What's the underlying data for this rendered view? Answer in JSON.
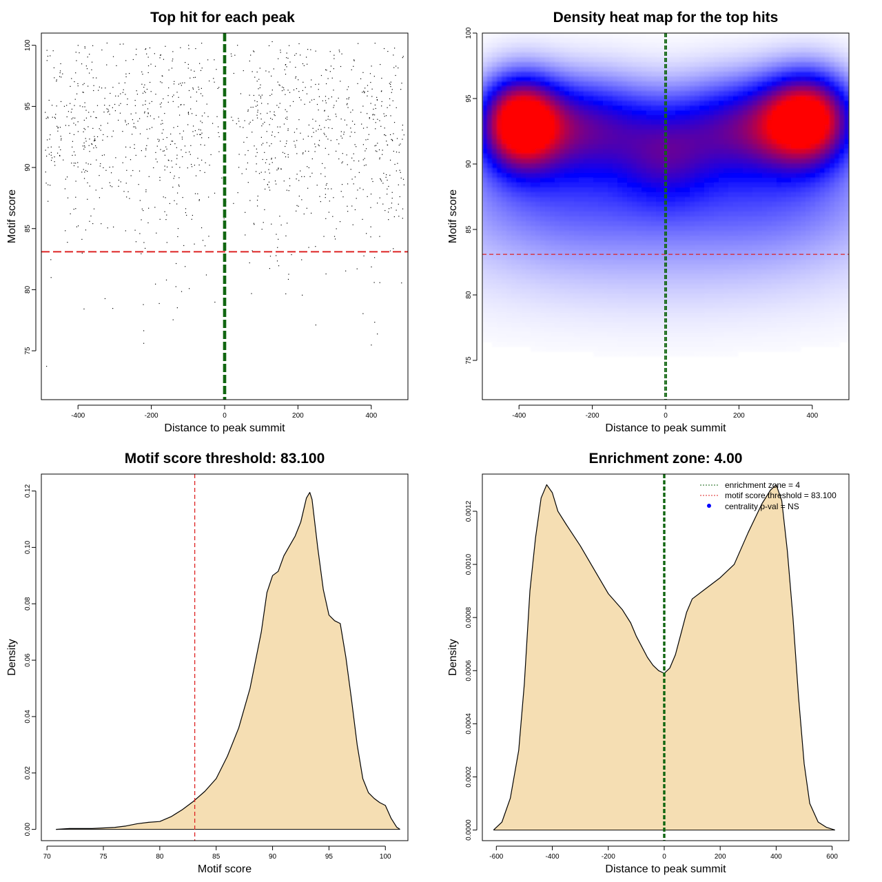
{
  "chart_data": [
    {
      "id": "scatter",
      "type": "scatter",
      "title": "Top hit for each peak",
      "xlabel": "Distance to peak summit",
      "ylabel": "Motif score",
      "xlim": [
        -500,
        500
      ],
      "ylim": [
        71,
        101
      ],
      "xticks": [
        -400,
        -200,
        0,
        200,
        400
      ],
      "yticks": [
        75,
        80,
        85,
        90,
        95,
        100
      ],
      "xtick_labels": [
        "-400",
        "-200",
        "0",
        "200",
        "400"
      ],
      "ytick_labels": [
        "75",
        "80",
        "85",
        "90",
        "95",
        "100"
      ],
      "threshold": 83.1,
      "enrichment_zone": [
        -2,
        2
      ],
      "threshold_color": "#dd2222",
      "zone_color": "#116611",
      "point_color": "#000000",
      "density_rows": [
        {
          "score": 99.8,
          "weight": 0.35
        },
        {
          "score": 99.0,
          "weight": 0.45
        },
        {
          "score": 98.0,
          "weight": 0.6
        },
        {
          "score": 97.0,
          "weight": 0.75
        },
        {
          "score": 96.0,
          "weight": 0.85
        },
        {
          "score": 95.0,
          "weight": 0.95
        },
        {
          "score": 94.0,
          "weight": 1.0
        },
        {
          "score": 93.0,
          "weight": 1.0
        },
        {
          "score": 92.0,
          "weight": 0.95
        },
        {
          "score": 91.0,
          "weight": 0.85
        },
        {
          "score": 90.0,
          "weight": 0.75
        },
        {
          "score": 89.0,
          "weight": 0.6
        },
        {
          "score": 88.0,
          "weight": 0.48
        },
        {
          "score": 87.0,
          "weight": 0.38
        },
        {
          "score": 86.0,
          "weight": 0.3
        },
        {
          "score": 85.0,
          "weight": 0.24
        },
        {
          "score": 84.0,
          "weight": 0.18
        },
        {
          "score": 83.0,
          "weight": 0.14
        },
        {
          "score": 82.0,
          "weight": 0.1
        },
        {
          "score": 81.0,
          "weight": 0.08
        },
        {
          "score": 80.0,
          "weight": 0.06
        },
        {
          "score": 79.0,
          "weight": 0.045
        },
        {
          "score": 78.0,
          "weight": 0.035
        },
        {
          "score": 77.0,
          "weight": 0.025
        },
        {
          "score": 76.0,
          "weight": 0.018
        },
        {
          "score": 75.0,
          "weight": 0.012
        },
        {
          "score": 74.0,
          "weight": 0.006
        },
        {
          "score": 72.5,
          "weight": 0.004
        }
      ]
    },
    {
      "id": "heatmap",
      "type": "heatmap",
      "title": "Density heat map for the top hits",
      "xlabel": "Distance to peak summit",
      "ylabel": "Motif score",
      "xlim": [
        -500,
        500
      ],
      "ylim": [
        72,
        100
      ],
      "xticks": [
        -400,
        -200,
        0,
        200,
        400
      ],
      "yticks": [
        75,
        80,
        85,
        90,
        95,
        100
      ],
      "xtick_labels": [
        "-400",
        "-200",
        "0",
        "200",
        "400"
      ],
      "ytick_labels": [
        "75",
        "80",
        "85",
        "90",
        "95",
        "100"
      ],
      "threshold": 83.1,
      "enrichment_zone": [
        -2,
        2
      ],
      "threshold_color": "#dd2222",
      "zone_color": "#116611",
      "blobs": [
        {
          "x": -400,
          "y": 93.2,
          "sx": 75,
          "sy": 2.4,
          "level": 1.0
        },
        {
          "x": 390,
          "y": 93.5,
          "sx": 85,
          "sy": 2.4,
          "level": 0.95
        },
        {
          "x": -220,
          "y": 93,
          "sx": 140,
          "sy": 2.6,
          "level": 0.55
        },
        {
          "x": 210,
          "y": 93,
          "sx": 140,
          "sy": 2.6,
          "level": 0.55
        },
        {
          "x": 0,
          "y": 90.5,
          "sx": 90,
          "sy": 2.5,
          "level": 0.28
        },
        {
          "x": -300,
          "y": 88,
          "sx": 230,
          "sy": 3.5,
          "level": 0.22
        },
        {
          "x": 300,
          "y": 88,
          "sx": 230,
          "sy": 3.5,
          "level": 0.22
        },
        {
          "x": 0,
          "y": 86,
          "sx": 400,
          "sy": 3.5,
          "level": 0.12
        },
        {
          "x": 0,
          "y": 81,
          "sx": 450,
          "sy": 3,
          "level": 0.05
        }
      ]
    },
    {
      "id": "score_density",
      "type": "area",
      "title": "Motif score threshold: 83.100",
      "xlabel": "Motif score",
      "ylabel": "Density",
      "xlim": [
        69.5,
        102
      ],
      "ylim": [
        -0.004,
        0.126
      ],
      "xticks": [
        70,
        75,
        80,
        85,
        90,
        95,
        100
      ],
      "yticks": [
        0,
        0.02,
        0.04,
        0.06,
        0.08,
        0.1,
        0.12
      ],
      "xtick_labels": [
        "70",
        "75",
        "80",
        "85",
        "90",
        "95",
        "100"
      ],
      "ytick_labels": [
        "0.00",
        "0.02",
        "0.04",
        "0.06",
        "0.08",
        "0.10",
        "0.12"
      ],
      "threshold": 83.1,
      "fill_color": "#f5deb3",
      "threshold_color": "#dd2222",
      "x": [
        70.8,
        72,
        74,
        76,
        77,
        78,
        79,
        80,
        81,
        82,
        83,
        84,
        85,
        86,
        87,
        88,
        89,
        89.5,
        90,
        90.5,
        91,
        91.5,
        92,
        92.5,
        93,
        93.3,
        93.5,
        94,
        94.5,
        95,
        95.5,
        96,
        96.5,
        97,
        97.5,
        98,
        98.5,
        99,
        99.5,
        100,
        100.5,
        101,
        101.3
      ],
      "y": [
        0.0,
        0.0003,
        0.0003,
        0.0007,
        0.0012,
        0.002,
        0.0025,
        0.0028,
        0.0045,
        0.007,
        0.01,
        0.0135,
        0.018,
        0.026,
        0.036,
        0.05,
        0.07,
        0.084,
        0.09,
        0.0915,
        0.097,
        0.1005,
        0.104,
        0.109,
        0.1175,
        0.1195,
        0.117,
        0.1,
        0.085,
        0.076,
        0.074,
        0.073,
        0.061,
        0.046,
        0.03,
        0.018,
        0.013,
        0.011,
        0.0095,
        0.0085,
        0.004,
        0.0008,
        0.0
      ]
    },
    {
      "id": "distance_density",
      "type": "area",
      "title": "Enrichment zone: 4.00",
      "xlabel": "Distance to peak summit",
      "ylabel": "Density",
      "xlim": [
        -650,
        660
      ],
      "ylim": [
        -4e-05,
        0.00134
      ],
      "xticks": [
        -600,
        -400,
        -200,
        0,
        200,
        400,
        600
      ],
      "yticks": [
        0,
        0.0002,
        0.0004,
        0.0006,
        0.0008,
        0.001,
        0.0012
      ],
      "xtick_labels": [
        "-600",
        "-400",
        "-200",
        "0",
        "200",
        "400",
        "600"
      ],
      "ytick_labels": [
        "0.0000",
        "0.0002",
        "0.0004",
        "0.0006",
        "0.0008",
        "0.0010",
        "0.0012"
      ],
      "enrichment_zone": [
        -2,
        2
      ],
      "fill_color": "#f5deb3",
      "zone_color": "#116611",
      "x": [
        -610,
        -580,
        -550,
        -520,
        -500,
        -480,
        -460,
        -440,
        -420,
        -400,
        -380,
        -350,
        -300,
        -250,
        -200,
        -150,
        -120,
        -100,
        -80,
        -60,
        -40,
        -20,
        0,
        20,
        40,
        60,
        80,
        100,
        150,
        200,
        250,
        300,
        350,
        380,
        400,
        420,
        440,
        460,
        480,
        500,
        520,
        550,
        580,
        610
      ],
      "y": [
        0.0,
        3e-05,
        0.00012,
        0.0003,
        0.00055,
        0.0009,
        0.0011,
        0.00125,
        0.0013,
        0.00127,
        0.0012,
        0.00115,
        0.00107,
        0.00098,
        0.00089,
        0.00083,
        0.00078,
        0.00073,
        0.00069,
        0.00065,
        0.00062,
        0.0006,
        0.00059,
        0.00061,
        0.00066,
        0.00074,
        0.00082,
        0.00087,
        0.00091,
        0.00095,
        0.001,
        0.00112,
        0.00123,
        0.00128,
        0.0013,
        0.00124,
        0.00105,
        0.0008,
        0.0005,
        0.00025,
        0.0001,
        3e-05,
        1e-05,
        0.0
      ],
      "legend": {
        "position": "top-right",
        "entries": [
          {
            "label": "enrichment zone = 4",
            "style": "dotted",
            "color": "#116611"
          },
          {
            "label": "motif score threshold = 83.100",
            "style": "dotted",
            "color": "#dd2222"
          },
          {
            "label": "centrality p-val = NS",
            "style": "point",
            "color": "#0000ff"
          }
        ]
      }
    }
  ]
}
